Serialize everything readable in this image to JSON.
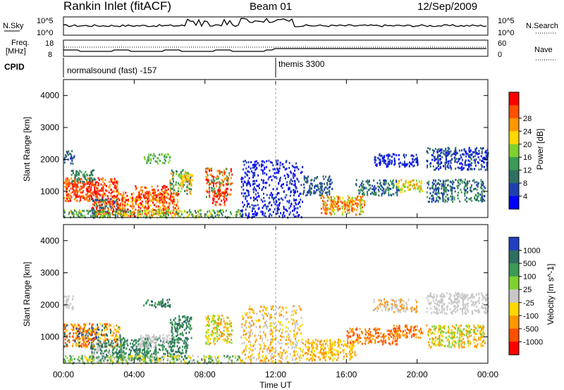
{
  "header": {
    "title": "Rankin Inlet (fitACF)",
    "beam": "Beam 01",
    "date": "12/Sep/2009"
  },
  "panels": {
    "nsky": {
      "label": "N.Sky",
      "tick_top": "10^5",
      "tick_bottom": "10^0",
      "right_label": "N.Search",
      "right_tick_top": "10^5",
      "right_tick_bottom": "10^0"
    },
    "freq": {
      "label_line1": "Freq.",
      "label_line2": "[MHz]",
      "tick_top": "18",
      "tick_bottom": "8",
      "right_label": "Nave",
      "right_tick_top": "60",
      "right_tick_bottom": "0"
    },
    "cpid": {
      "label": "CPID",
      "segments": [
        {
          "start_hour": 0,
          "label": "normalsound (fast) -157"
        },
        {
          "start_hour": 12,
          "label": "themis 3300"
        }
      ]
    }
  },
  "colors": {
    "power": [
      "#0000ff",
      "#1f3fb0",
      "#2f6f60",
      "#3c9a55",
      "#7fd12f",
      "#ffd700",
      "#ff9500",
      "#ff5000",
      "#ff0000"
    ],
    "velocity": [
      "#2040c0",
      "#2f6f60",
      "#3c9a55",
      "#7fd12f",
      "#c8c8c8",
      "#ffd700",
      "#ff9500",
      "#ff5000",
      "#ff0000"
    ]
  },
  "chart_data": [
    {
      "type": "heatmap",
      "name": "power",
      "ylabel": "Slant Range [km]",
      "ylim": [
        180,
        4500
      ],
      "yticks": [
        "1000",
        "2000",
        "3000",
        "4000"
      ],
      "xlim": [
        0,
        24
      ],
      "colorbar": {
        "label": "Power [dB]",
        "ticks": [
          "4",
          "8",
          "12",
          "16",
          "20",
          "24",
          "28"
        ]
      },
      "regions": [
        {
          "x": [
            0.0,
            3.1
          ],
          "y": [
            700,
            1450
          ],
          "c": [
            6,
            7,
            8
          ]
        },
        {
          "x": [
            0.4,
            1.9
          ],
          "y": [
            850,
            1300
          ],
          "c": [
            7,
            8
          ]
        },
        {
          "x": [
            1.5,
            3.0
          ],
          "y": [
            250,
            800
          ],
          "c": [
            2,
            3,
            1
          ]
        },
        {
          "x": [
            1.6,
            3.2
          ],
          "y": [
            300,
            700
          ],
          "c": [
            6,
            7,
            8
          ]
        },
        {
          "x": [
            3.0,
            6.5
          ],
          "y": [
            250,
            1000
          ],
          "c": [
            6,
            7,
            8,
            5
          ]
        },
        {
          "x": [
            4.0,
            6.2
          ],
          "y": [
            700,
            1200
          ],
          "c": [
            7,
            6,
            8
          ]
        },
        {
          "x": [
            4.5,
            6.0
          ],
          "y": [
            1900,
            2200
          ],
          "c": [
            3,
            4
          ]
        },
        {
          "x": [
            6.0,
            7.2
          ],
          "y": [
            950,
            1700
          ],
          "c": [
            3,
            4,
            6,
            2
          ]
        },
        {
          "x": [
            6.6,
            7.3
          ],
          "y": [
            1200,
            1600
          ],
          "c": [
            6,
            5
          ]
        },
        {
          "x": [
            8.0,
            9.5
          ],
          "y": [
            850,
            1750
          ],
          "c": [
            6,
            7,
            8,
            3
          ]
        },
        {
          "x": [
            8.4,
            9.2
          ],
          "y": [
            600,
            1100
          ],
          "c": [
            8,
            7
          ]
        },
        {
          "x": [
            0.0,
            0.6
          ],
          "y": [
            1900,
            2300
          ],
          "c": [
            1,
            2
          ]
        },
        {
          "x": [
            0.4,
            1.8
          ],
          "y": [
            1300,
            1700
          ],
          "c": [
            2,
            3
          ]
        },
        {
          "x": [
            0.0,
            10.0
          ],
          "y": [
            200,
            450
          ],
          "c": [
            3,
            4,
            5,
            2
          ]
        },
        {
          "x": [
            10.0,
            13.5
          ],
          "y": [
            200,
            2000
          ],
          "c": [
            1,
            0
          ]
        },
        {
          "x": [
            13.5,
            15.2
          ],
          "y": [
            900,
            1500
          ],
          "c": [
            1,
            2
          ]
        },
        {
          "x": [
            14.5,
            17.0
          ],
          "y": [
            300,
            900
          ],
          "c": [
            4,
            5,
            6,
            7
          ]
        },
        {
          "x": [
            15.0,
            16.4
          ],
          "y": [
            450,
            750
          ],
          "c": [
            7,
            6
          ]
        },
        {
          "x": [
            16.5,
            19.0
          ],
          "y": [
            900,
            1400
          ],
          "c": [
            2,
            3,
            1
          ]
        },
        {
          "x": [
            18.8,
            20.3
          ],
          "y": [
            1000,
            1400
          ],
          "c": [
            4,
            5,
            6
          ]
        },
        {
          "x": [
            20.5,
            23.8
          ],
          "y": [
            700,
            1400
          ],
          "c": [
            1,
            2,
            3
          ]
        },
        {
          "x": [
            20.5,
            24.0
          ],
          "y": [
            1700,
            2400
          ],
          "c": [
            1,
            0,
            2
          ]
        },
        {
          "x": [
            17.5,
            20.0
          ],
          "y": [
            1800,
            2200
          ],
          "c": [
            1,
            0
          ]
        }
      ]
    },
    {
      "type": "heatmap",
      "name": "velocity",
      "ylabel": "Slant Range [km]",
      "ylim": [
        180,
        4500
      ],
      "yticks": [
        "1000",
        "2000",
        "3000",
        "4000"
      ],
      "xlim": [
        0,
        24
      ],
      "colorbar": {
        "label": "Velocity [m s^-1]",
        "ticks": [
          "1000",
          "500",
          "100",
          "25",
          "-25",
          "-100",
          "-500",
          "-1000"
        ]
      },
      "regions": [
        {
          "x": [
            0.0,
            3.2
          ],
          "y": [
            700,
            1450
          ],
          "c": [
            6,
            7,
            1,
            5
          ]
        },
        {
          "x": [
            0.5,
            1.9
          ],
          "y": [
            900,
            1300
          ],
          "c": [
            6,
            7,
            0
          ]
        },
        {
          "x": [
            1.5,
            3.5
          ],
          "y": [
            250,
            900
          ],
          "c": [
            1,
            2,
            4
          ]
        },
        {
          "x": [
            3.0,
            7.0
          ],
          "y": [
            300,
            1000
          ],
          "c": [
            1,
            2
          ]
        },
        {
          "x": [
            4.2,
            6.0
          ],
          "y": [
            700,
            1100
          ],
          "c": [
            4
          ]
        },
        {
          "x": [
            4.5,
            6.0
          ],
          "y": [
            1950,
            2200
          ],
          "c": [
            2,
            1
          ]
        },
        {
          "x": [
            6.0,
            7.2
          ],
          "y": [
            900,
            1700
          ],
          "c": [
            1,
            2
          ]
        },
        {
          "x": [
            8.0,
            9.5
          ],
          "y": [
            800,
            1700
          ],
          "c": [
            6,
            5,
            3
          ]
        },
        {
          "x": [
            0.0,
            0.6
          ],
          "y": [
            1900,
            2300
          ],
          "c": [
            4
          ]
        },
        {
          "x": [
            0.0,
            10.0
          ],
          "y": [
            200,
            450
          ],
          "c": [
            2,
            3,
            5,
            4
          ]
        },
        {
          "x": [
            10.0,
            13.5
          ],
          "y": [
            200,
            2000
          ],
          "c": [
            4,
            5,
            6
          ]
        },
        {
          "x": [
            13.5,
            16.5
          ],
          "y": [
            300,
            950
          ],
          "c": [
            6,
            5
          ]
        },
        {
          "x": [
            16.0,
            19.0
          ],
          "y": [
            800,
            1300
          ],
          "c": [
            6,
            7
          ]
        },
        {
          "x": [
            18.6,
            20.3
          ],
          "y": [
            1000,
            1400
          ],
          "c": [
            7,
            6
          ]
        },
        {
          "x": [
            20.5,
            23.8
          ],
          "y": [
            700,
            1400
          ],
          "c": [
            6,
            5,
            3
          ]
        },
        {
          "x": [
            20.5,
            24.0
          ],
          "y": [
            1750,
            2400
          ],
          "c": [
            4
          ]
        },
        {
          "x": [
            17.5,
            20.0
          ],
          "y": [
            1800,
            2200
          ],
          "c": [
            4,
            6
          ]
        }
      ]
    }
  ],
  "xaxis": {
    "label": "Time UT",
    "ticks": [
      "00:00",
      "04:00",
      "08:00",
      "12:00",
      "16:00",
      "20:00",
      "00:00"
    ]
  }
}
